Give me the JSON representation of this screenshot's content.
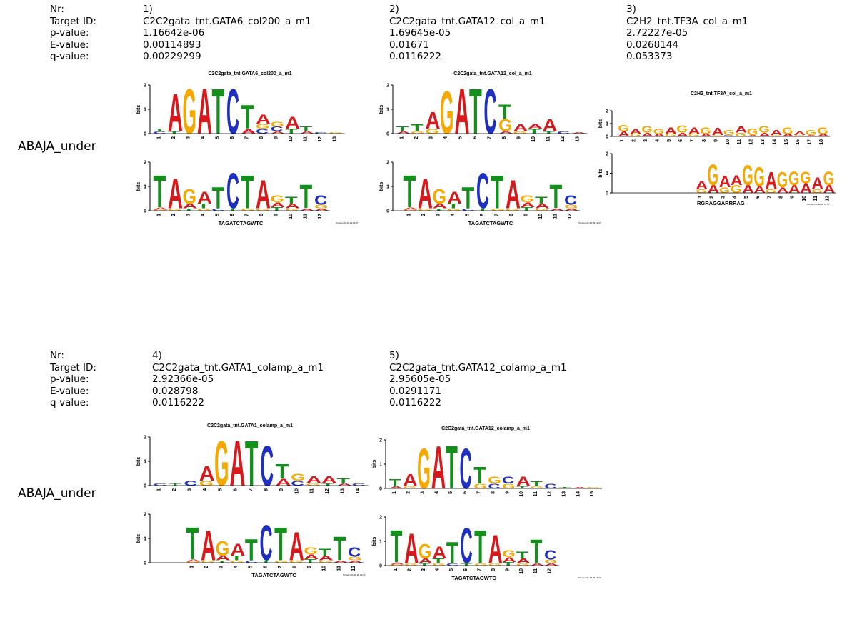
{
  "colors": {
    "A": "#d7191c",
    "C": "#1f2fbf",
    "G": "#f5a800",
    "T": "#138f1c"
  },
  "rows": [
    {
      "row_label": "ABAJA_under",
      "headers": [
        "Nr:",
        "Target ID:",
        "p-value:",
        "E-value:",
        "q-value:"
      ],
      "matches": [
        {
          "nr": "1)",
          "target_id": "C2C2gata_tnt.GATA6_col200_a_m1",
          "p_value": "1.16642e-06",
          "e_value": "0.00114893",
          "q_value": "0.00229299",
          "logo_title": "C2C2gata_tnt.GATA6_col200_a_m1",
          "consensus": "TAGATCTAGWTC",
          "stamp": "Tomtom 01.28.09 13:37"
        },
        {
          "nr": "2)",
          "target_id": "C2C2gata_tnt.GATA12_col_a_m1",
          "p_value": "1.69645e-05",
          "e_value": "0.01671",
          "q_value": "0.0116222",
          "logo_title": "C2C2gata_tnt.GATA12_col_a_m1",
          "consensus": "TAGATCTAGWTC",
          "stamp": "Tomtom 01.28.09 13:37"
        },
        {
          "nr": "3)",
          "target_id": "C2H2_tnt.TF3A_col_a_m1",
          "p_value": "2.72227e-05",
          "e_value": "0.0268144",
          "q_value": "0.053373",
          "logo_title": "C2H2_tnt.TF3A_col_a_m1",
          "consensus": "RGRAGGARRRAG",
          "stamp": "Tomtom 01.28.09 13:37"
        }
      ]
    },
    {
      "row_label": "ABAJA_under",
      "headers": [
        "Nr:",
        "Target ID:",
        "p-value:",
        "E-value:",
        "q-value:"
      ],
      "matches": [
        {
          "nr": "4)",
          "target_id": "C2C2gata_tnt.GATA1_colamp_a_m1",
          "p_value": "2.92366e-05",
          "e_value": "0.028798",
          "q_value": "0.0116222",
          "logo_title": "C2C2gata_tnt.GATA1_colamp_a_m1",
          "consensus": "TAGATCTAGWTC",
          "stamp": "Tomtom 01.28.09 13:37"
        },
        {
          "nr": "5)",
          "target_id": "C2C2gata_tnt.GATA12_colamp_a_m1",
          "p_value": "2.95605e-05",
          "e_value": "0.0291171",
          "q_value": "0.0116222",
          "logo_title": "C2C2gata_tnt.GATA12_colamp_a_m1",
          "consensus": "TAGATCTAGWTC",
          "stamp": "Tomtom 01.28.09 13:37"
        }
      ]
    }
  ],
  "logos": {
    "axis_label": "bits",
    "y_ticks": [
      "0",
      "1",
      "2"
    ],
    "query": [
      [
        [
          "T",
          1.35
        ],
        [
          "A",
          0.1
        ],
        [
          "G",
          0.05
        ]
      ],
      [
        [
          "A",
          1.25
        ],
        [
          "G",
          0.1
        ]
      ],
      [
        [
          "G",
          0.6
        ],
        [
          "A",
          0.2
        ],
        [
          "T",
          0.1
        ]
      ],
      [
        [
          "A",
          0.5
        ],
        [
          "T",
          0.2
        ],
        [
          "G",
          0.1
        ]
      ],
      [
        [
          "T",
          0.9
        ],
        [
          "C",
          0.1
        ]
      ],
      [
        [
          "C",
          1.5
        ],
        [
          "T",
          0.1
        ]
      ],
      [
        [
          "T",
          1.4
        ],
        [
          "G",
          0.1
        ]
      ],
      [
        [
          "A",
          1.2
        ],
        [
          "G",
          0.1
        ]
      ],
      [
        [
          "G",
          0.3
        ],
        [
          "A",
          0.2
        ],
        [
          "T",
          0.15
        ]
      ],
      [
        [
          "T",
          0.3
        ],
        [
          "A",
          0.2
        ],
        [
          "G",
          0.1
        ]
      ],
      [
        [
          "T",
          1.0
        ],
        [
          "A",
          0.1
        ]
      ],
      [
        [
          "C",
          0.4
        ],
        [
          "G",
          0.15
        ],
        [
          "A",
          0.1
        ]
      ]
    ],
    "query_tf3a": [
      [
        [
          "A",
          0.4
        ],
        [
          "G",
          0.2
        ]
      ],
      [
        [
          "G",
          1.1
        ],
        [
          "A",
          0.4
        ]
      ],
      [
        [
          "A",
          0.6
        ],
        [
          "G",
          0.3
        ]
      ],
      [
        [
          "A",
          0.5
        ],
        [
          "G",
          0.4
        ]
      ],
      [
        [
          "G",
          1.05
        ],
        [
          "A",
          0.4
        ]
      ],
      [
        [
          "G",
          1.0
        ],
        [
          "A",
          0.35
        ]
      ],
      [
        [
          "A",
          0.9
        ],
        [
          "G",
          0.2
        ]
      ],
      [
        [
          "G",
          0.8
        ],
        [
          "A",
          0.3
        ]
      ],
      [
        [
          "G",
          0.7
        ],
        [
          "A",
          0.4
        ]
      ],
      [
        [
          "G",
          0.6
        ],
        [
          "A",
          0.5
        ]
      ],
      [
        [
          "A",
          0.6
        ],
        [
          "G",
          0.2
        ]
      ],
      [
        [
          "G",
          0.7
        ],
        [
          "A",
          0.4
        ]
      ]
    ],
    "targets": [
      [
        [
          [
            "C",
            0.1
          ],
          [
            "T",
            0.1
          ]
        ],
        [
          [
            "A",
            1.6
          ],
          [
            "T",
            0.1
          ]
        ],
        [
          [
            "G",
            1.9
          ]
        ],
        [
          [
            "A",
            1.9
          ]
        ],
        [
          [
            "T",
            1.9
          ]
        ],
        [
          [
            "C",
            1.9
          ]
        ],
        [
          [
            "T",
            1.0
          ],
          [
            "A",
            0.2
          ]
        ],
        [
          [
            "A",
            0.4
          ],
          [
            "C",
            0.2
          ],
          [
            "G",
            0.2
          ]
        ],
        [
          [
            "C",
            0.2
          ],
          [
            "G",
            0.2
          ],
          [
            "A",
            0.1
          ]
        ],
        [
          [
            "A",
            0.5
          ],
          [
            "T",
            0.2
          ]
        ],
        [
          [
            "T",
            0.2
          ],
          [
            "A",
            0.1
          ]
        ],
        [
          [
            "C",
            0.05
          ]
        ],
        [
          [
            "G",
            0.05
          ]
        ]
      ],
      [
        [
          [
            "T",
            0.2
          ],
          [
            "A",
            0.1
          ]
        ],
        [
          [
            "T",
            0.3
          ],
          [
            "G",
            0.1
          ]
        ],
        [
          [
            "A",
            0.7
          ],
          [
            "G",
            0.2
          ]
        ],
        [
          [
            "G",
            1.8
          ]
        ],
        [
          [
            "A",
            1.9
          ]
        ],
        [
          [
            "T",
            1.9
          ]
        ],
        [
          [
            "C",
            1.9
          ]
        ],
        [
          [
            "T",
            0.6
          ],
          [
            "G",
            0.5
          ],
          [
            "A",
            0.1
          ]
        ],
        [
          [
            "A",
            0.3
          ],
          [
            "G",
            0.1
          ]
        ],
        [
          [
            "T",
            0.2
          ],
          [
            "A",
            0.2
          ]
        ],
        [
          [
            "A",
            0.5
          ],
          [
            "T",
            0.1
          ]
        ],
        [
          [
            "C",
            0.1
          ]
        ],
        [
          [
            "A",
            0.05
          ]
        ]
      ],
      [
        [
          [
            "G",
            0.5
          ],
          [
            "A",
            0.4
          ]
        ],
        [
          [
            "A",
            0.4
          ],
          [
            "G",
            0.2
          ]
        ],
        [
          [
            "G",
            0.5
          ],
          [
            "A",
            0.3
          ]
        ],
        [
          [
            "G",
            0.4
          ],
          [
            "A",
            0.2
          ]
        ],
        [
          [
            "A",
            0.5
          ],
          [
            "G",
            0.2
          ]
        ],
        [
          [
            "G",
            0.6
          ],
          [
            "A",
            0.3
          ]
        ],
        [
          [
            "A",
            0.5
          ],
          [
            "G",
            0.2
          ]
        ],
        [
          [
            "G",
            0.5
          ],
          [
            "A",
            0.2
          ]
        ],
        [
          [
            "A",
            0.6
          ],
          [
            "G",
            0.1
          ]
        ],
        [
          [
            "G",
            0.4
          ],
          [
            "C",
            0.1
          ]
        ],
        [
          [
            "A",
            0.5
          ],
          [
            "G",
            0.3
          ]
        ],
        [
          [
            "G",
            0.5
          ],
          [
            "A",
            0.1
          ]
        ],
        [
          [
            "G",
            0.5
          ],
          [
            "A",
            0.3
          ]
        ],
        [
          [
            "A",
            0.4
          ],
          [
            "G",
            0.1
          ]
        ],
        [
          [
            "G",
            0.5
          ],
          [
            "A",
            0.2
          ]
        ],
        [
          [
            "A",
            0.3
          ],
          [
            "G",
            0.1
          ]
        ],
        [
          [
            "G",
            0.4
          ],
          [
            "A",
            0.1
          ]
        ],
        [
          [
            "G",
            0.5
          ],
          [
            "A",
            0.2
          ]
        ]
      ],
      [
        [
          [
            "C",
            0.1
          ]
        ],
        [
          [
            "T",
            0.1
          ]
        ],
        [
          [
            "C",
            0.2
          ]
        ],
        [
          [
            "A",
            0.6
          ],
          [
            "G",
            0.2
          ]
        ],
        [
          [
            "G",
            1.9
          ]
        ],
        [
          [
            "A",
            1.9
          ]
        ],
        [
          [
            "T",
            1.9
          ]
        ],
        [
          [
            "C",
            1.7
          ]
        ],
        [
          [
            "T",
            0.6
          ],
          [
            "A",
            0.3
          ]
        ],
        [
          [
            "G",
            0.3
          ],
          [
            "C",
            0.2
          ]
        ],
        [
          [
            "A",
            0.3
          ],
          [
            "G",
            0.1
          ]
        ],
        [
          [
            "A",
            0.3
          ],
          [
            "T",
            0.1
          ]
        ],
        [
          [
            "T",
            0.2
          ],
          [
            "A",
            0.1
          ]
        ],
        [
          [
            "C",
            0.1
          ]
        ]
      ],
      [
        [
          [
            "T",
            0.3
          ],
          [
            "A",
            0.1
          ]
        ],
        [
          [
            "A",
            0.5
          ],
          [
            "G",
            0.1
          ]
        ],
        [
          [
            "G",
            1.7
          ]
        ],
        [
          [
            "A",
            1.8
          ]
        ],
        [
          [
            "T",
            1.8
          ]
        ],
        [
          [
            "C",
            1.7
          ]
        ],
        [
          [
            "T",
            0.7
          ],
          [
            "G",
            0.2
          ]
        ],
        [
          [
            "G",
            0.3
          ],
          [
            "C",
            0.2
          ]
        ],
        [
          [
            "C",
            0.3
          ],
          [
            "G",
            0.2
          ]
        ],
        [
          [
            "A",
            0.4
          ],
          [
            "T",
            0.1
          ]
        ],
        [
          [
            "T",
            0.2
          ],
          [
            "G",
            0.1
          ]
        ],
        [
          [
            "C",
            0.2
          ]
        ],
        [
          [
            "T",
            0.05
          ]
        ],
        [
          [
            "A",
            0.05
          ]
        ],
        [
          [
            "G",
            0.05
          ]
        ]
      ]
    ]
  }
}
